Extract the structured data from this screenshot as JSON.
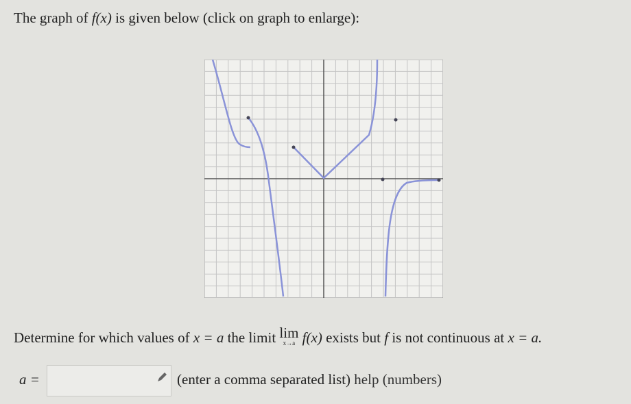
{
  "header": {
    "before": "The graph of",
    "math": "f(x)",
    "after": "is given below (click on graph to enlarge):"
  },
  "question": {
    "before": "Determine for which values of",
    "math1": "x = a",
    "middle": "the limit",
    "lim": "lim",
    "limsub": "x→a",
    "fx": "f(x)",
    "exists": "exists but",
    "f": "f",
    "not_continuous": "is not continuous at",
    "math2": "x = a."
  },
  "answer": {
    "label": "a =",
    "hint": "(enter a comma separated list)",
    "help": "help (numbers)"
  }
}
